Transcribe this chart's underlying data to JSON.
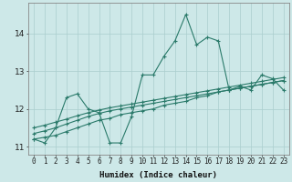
{
  "xlabel": "Humidex (Indice chaleur)",
  "x": [
    0,
    1,
    2,
    3,
    4,
    5,
    6,
    7,
    8,
    9,
    10,
    11,
    12,
    13,
    14,
    15,
    16,
    17,
    18,
    19,
    20,
    21,
    22,
    23
  ],
  "line1": [
    11.2,
    11.1,
    11.5,
    12.3,
    12.4,
    12.0,
    11.9,
    11.1,
    11.1,
    11.8,
    12.9,
    12.9,
    13.4,
    13.8,
    14.5,
    13.7,
    13.9,
    13.8,
    12.5,
    12.6,
    12.5,
    12.9,
    12.8,
    12.5
  ],
  "line2": [
    11.2,
    11.25,
    11.3,
    11.4,
    11.5,
    11.6,
    11.7,
    11.75,
    11.85,
    11.9,
    11.95,
    12.0,
    12.1,
    12.15,
    12.2,
    12.3,
    12.35,
    12.45,
    12.5,
    12.55,
    12.6,
    12.65,
    12.7,
    12.75
  ],
  "line3": [
    11.35,
    11.42,
    11.5,
    11.6,
    11.7,
    11.8,
    11.88,
    11.95,
    12.0,
    12.05,
    12.1,
    12.15,
    12.2,
    12.25,
    12.3,
    12.35,
    12.4,
    12.45,
    12.5,
    12.55,
    12.6,
    12.65,
    12.7,
    12.75
  ],
  "line4": [
    11.5,
    11.57,
    11.65,
    11.73,
    11.82,
    11.9,
    11.97,
    12.03,
    12.08,
    12.13,
    12.18,
    12.23,
    12.28,
    12.33,
    12.38,
    12.43,
    12.48,
    12.53,
    12.58,
    12.63,
    12.68,
    12.73,
    12.78,
    12.83
  ],
  "line_color": "#2a7a6a",
  "bg_color": "#cde8e8",
  "grid_color": "#aacece",
  "ylim": [
    10.8,
    14.8
  ],
  "yticks": [
    11,
    12,
    13,
    14
  ],
  "xticks": [
    0,
    1,
    2,
    3,
    4,
    5,
    6,
    7,
    8,
    9,
    10,
    11,
    12,
    13,
    14,
    15,
    16,
    17,
    18,
    19,
    20,
    21,
    22,
    23
  ],
  "tick_fontsize": 5.5,
  "label_fontsize": 6.5
}
